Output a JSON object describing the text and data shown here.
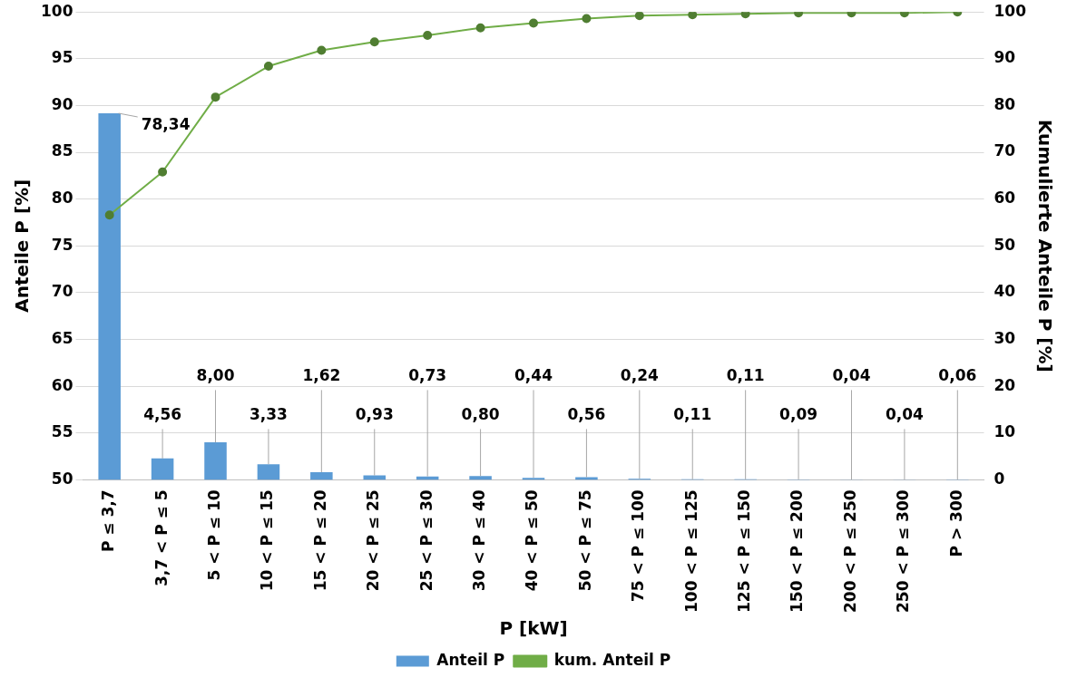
{
  "chart_data": {
    "type": "bar",
    "xlabel": "P [kW]",
    "ylabel": "Anteile P [%]",
    "y2label": "Kumulierte Anteile P [%]",
    "categories": [
      "P ≤ 3,7",
      "3,7 < P ≤ 5",
      "5 < P ≤ 10",
      "10 < P ≤ 15",
      "15 < P ≤ 20",
      "20 < P ≤ 25",
      "25 < P ≤ 30",
      "30 < P ≤ 40",
      "40 < P ≤ 50",
      "50 < P ≤ 75",
      "75 < P ≤ 100",
      "100 < P ≤ 125",
      "125 < P ≤ 150",
      "150 < P ≤ 200",
      "200 < P ≤ 250",
      "250 < P ≤ 300",
      "P > 300"
    ],
    "series": [
      {
        "name": "Anteil P",
        "axis": "y2",
        "color": "#5b9bd5",
        "values": [
          78.34,
          4.56,
          8.0,
          3.33,
          1.62,
          0.93,
          0.73,
          0.8,
          0.44,
          0.56,
          0.24,
          0.11,
          0.11,
          0.09,
          0.04,
          0.04,
          0.06
        ],
        "value_labels": [
          "78,34",
          "4,56",
          "8,00",
          "3,33",
          "1,62",
          "0,93",
          "0,73",
          "0,80",
          "0,44",
          "0,56",
          "0,24",
          "0,11",
          "0,11",
          "0,09",
          "0,04",
          "0,04",
          "0,06"
        ]
      },
      {
        "name": "kum. Anteil P",
        "type": "line",
        "axis": "y",
        "color": "#70ad47",
        "marker": "circle",
        "values": [
          78.3,
          82.9,
          90.9,
          94.2,
          95.9,
          96.8,
          97.5,
          98.3,
          98.8,
          99.3,
          99.6,
          99.7,
          99.8,
          99.9,
          99.9,
          99.9,
          100
        ]
      }
    ],
    "ylim": [
      50,
      100
    ],
    "yticks": [
      50,
      55,
      60,
      65,
      70,
      75,
      80,
      85,
      90,
      95,
      100
    ],
    "y2lim": [
      0,
      100
    ],
    "y2ticks": [
      0,
      10,
      20,
      30,
      40,
      50,
      60,
      70,
      80,
      90,
      100
    ],
    "grid": "y",
    "legend": "bottom"
  }
}
